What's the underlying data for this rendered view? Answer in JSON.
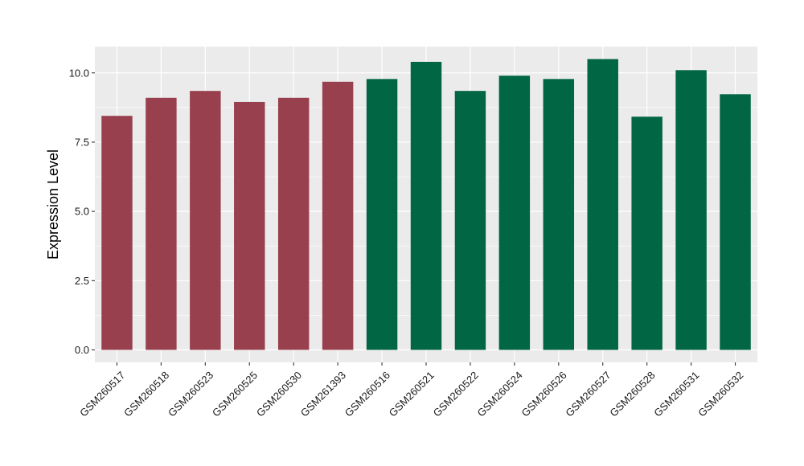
{
  "chart_data": {
    "type": "bar",
    "title": "",
    "xlabel": "",
    "ylabel": "Expression Level",
    "ylim": [
      -0.45,
      10.95
    ],
    "yticks": [
      0.0,
      2.5,
      5.0,
      7.5,
      10.0
    ],
    "ytick_labels": [
      "0.0",
      "2.5",
      "5.0",
      "7.5",
      "10.0"
    ],
    "grid": true,
    "legend": "none",
    "categories": [
      "GSM260517",
      "GSM260518",
      "GSM260523",
      "GSM260525",
      "GSM260530",
      "GSM261393",
      "GSM260516",
      "GSM260521",
      "GSM260522",
      "GSM260524",
      "GSM260526",
      "GSM260527",
      "GSM260528",
      "GSM260531",
      "GSM260532"
    ],
    "values": [
      8.45,
      9.1,
      9.35,
      8.95,
      9.1,
      9.68,
      9.78,
      10.4,
      9.35,
      9.9,
      9.78,
      10.5,
      8.42,
      10.1,
      9.23
    ],
    "bar_colors": [
      "#99404e",
      "#99404e",
      "#99404e",
      "#99404e",
      "#99404e",
      "#99404e",
      "#006644",
      "#006644",
      "#006644",
      "#006644",
      "#006644",
      "#006644",
      "#006644",
      "#006644",
      "#006644"
    ],
    "colors": {
      "panel_background": "#ebebeb",
      "grid_major": "#ffffff",
      "group_a": "#99404e",
      "group_b": "#006644"
    }
  }
}
